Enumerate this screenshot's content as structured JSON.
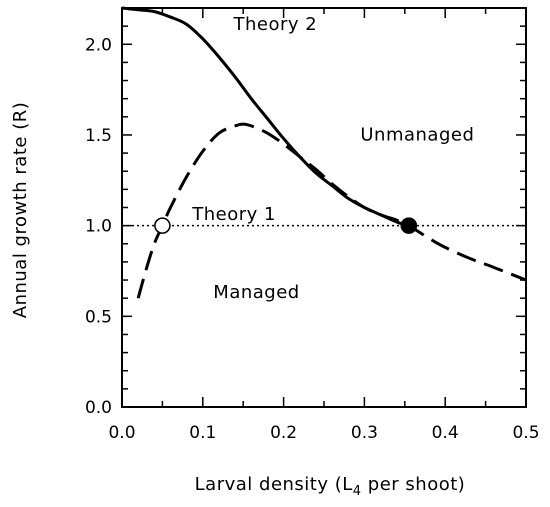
{
  "chart_data": {
    "type": "line",
    "xlabel": "Larval density (L",
    "xlabel_sub": "4",
    "xlabel_tail": " per shoot)",
    "ylabel": "Annual growth rate (R)",
    "xlim": [
      0.0,
      0.5
    ],
    "ylim": [
      0.0,
      2.2
    ],
    "x_ticks": [
      0.0,
      0.1,
      0.2,
      0.3,
      0.4,
      0.5
    ],
    "x_tick_labels": [
      "0.0",
      "0.1",
      "0.2",
      "0.3",
      "0.4",
      "0.5"
    ],
    "y_ticks": [
      0.0,
      0.5,
      1.0,
      1.5,
      2.0
    ],
    "y_tick_labels": [
      "0.0",
      "0.5",
      "1.0",
      "1.5",
      "2.0"
    ],
    "x_minor_step": 0.05,
    "y_minor_step": 0.1,
    "grid": false,
    "series": [
      {
        "name": "Theory 2",
        "style": "solid",
        "x": [
          0.0,
          0.02,
          0.04,
          0.06,
          0.08,
          0.1,
          0.12,
          0.14,
          0.16,
          0.18,
          0.2,
          0.22,
          0.24,
          0.26,
          0.28,
          0.3,
          0.32,
          0.34,
          0.355
        ],
        "y": [
          2.2,
          2.19,
          2.18,
          2.15,
          2.11,
          2.03,
          1.93,
          1.82,
          1.7,
          1.59,
          1.48,
          1.38,
          1.29,
          1.22,
          1.15,
          1.1,
          1.06,
          1.02,
          1.0
        ]
      },
      {
        "name": "Theory 1",
        "style": "dashed",
        "x": [
          0.02,
          0.03,
          0.04,
          0.05,
          0.06,
          0.08,
          0.1,
          0.12,
          0.14,
          0.15,
          0.16,
          0.18,
          0.2,
          0.22,
          0.24,
          0.26,
          0.28,
          0.3,
          0.32,
          0.34,
          0.355,
          0.38,
          0.4,
          0.43,
          0.46,
          0.5
        ],
        "y": [
          0.6,
          0.76,
          0.9,
          1.0,
          1.1,
          1.27,
          1.41,
          1.51,
          1.55,
          1.56,
          1.55,
          1.51,
          1.45,
          1.38,
          1.31,
          1.23,
          1.16,
          1.1,
          1.06,
          1.03,
          1.0,
          0.93,
          0.88,
          0.82,
          0.77,
          0.7
        ]
      }
    ],
    "reference_line": {
      "y": 1.0,
      "style": "dotted"
    },
    "points": [
      {
        "x": 0.05,
        "y": 1.0,
        "fill": "open"
      },
      {
        "x": 0.355,
        "y": 1.0,
        "fill": "filled"
      }
    ],
    "annotations": [
      {
        "text": "Theory 2",
        "x": 0.138,
        "y": 2.08
      },
      {
        "text": "Unmanaged",
        "x": 0.295,
        "y": 1.47
      },
      {
        "text": "Theory 1",
        "x": 0.087,
        "y": 1.03
      },
      {
        "text": "Managed",
        "x": 0.113,
        "y": 0.6
      }
    ],
    "colors": {
      "line": "#000000",
      "background": "#ffffff"
    }
  }
}
